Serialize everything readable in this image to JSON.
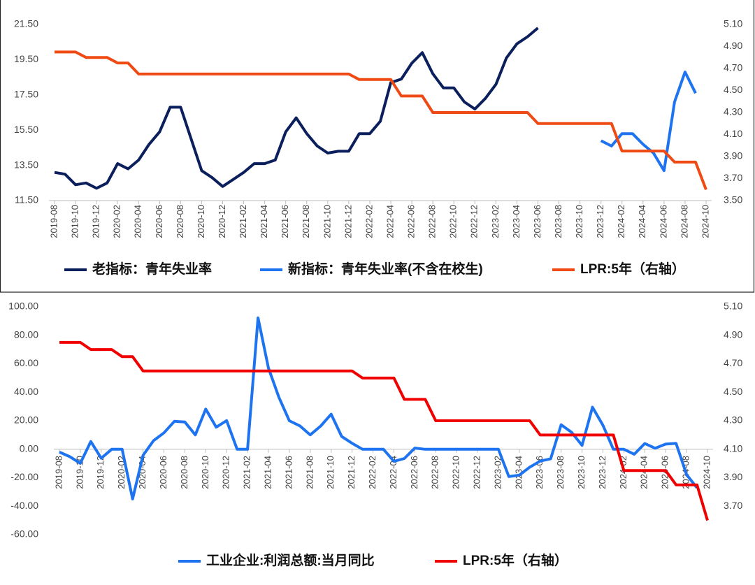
{
  "chart_data": [
    {
      "type": "line",
      "categories": [
        "2019-08",
        null,
        "2019-10",
        null,
        "2019-12",
        null,
        "2020-02",
        null,
        "2020-04",
        null,
        "2020-06",
        null,
        "2020-08",
        null,
        "2020-10",
        null,
        "2020-12",
        null,
        "2021-02",
        null,
        "2021-04",
        null,
        "2021-06",
        null,
        "2021-08",
        null,
        "2021-10",
        null,
        "2021-12",
        null,
        "2022-02",
        null,
        "2022-04",
        null,
        "2022-06",
        null,
        "2022-08",
        null,
        "2022-10",
        null,
        "2022-12",
        null,
        "2023-02",
        null,
        "2023-04",
        null,
        "2023-06",
        null,
        "2023-08",
        null,
        "2023-10",
        null,
        "2023-12",
        null,
        "2024-02",
        null,
        "2024-04",
        null,
        "2024-06",
        null,
        "2024-08",
        null,
        "2024-10"
      ],
      "series": [
        {
          "name": "老指标：青年失业率",
          "color": "#0b1f5c",
          "values": [
            13.1,
            13.0,
            12.4,
            12.5,
            12.2,
            12.5,
            13.6,
            13.3,
            13.8,
            14.7,
            15.4,
            16.8,
            16.8,
            15.0,
            13.2,
            12.8,
            12.3,
            12.7,
            13.1,
            13.6,
            13.6,
            13.8,
            15.4,
            16.2,
            15.3,
            14.6,
            14.2,
            14.3,
            14.3,
            15.3,
            15.3,
            16.0,
            18.2,
            18.4,
            19.3,
            19.9,
            18.7,
            17.9,
            17.9,
            17.1,
            16.7,
            17.3,
            18.1,
            19.6,
            20.4,
            20.8,
            21.3,
            null,
            null,
            null,
            null,
            null,
            null,
            null,
            null,
            null,
            null,
            null,
            null,
            null,
            null,
            null,
            null
          ]
        },
        {
          "name": "新指标：青年失业率(不含在校生)",
          "color": "#1e74f0",
          "values": [
            null,
            null,
            null,
            null,
            null,
            null,
            null,
            null,
            null,
            null,
            null,
            null,
            null,
            null,
            null,
            null,
            null,
            null,
            null,
            null,
            null,
            null,
            null,
            null,
            null,
            null,
            null,
            null,
            null,
            null,
            null,
            null,
            null,
            null,
            null,
            null,
            null,
            null,
            null,
            null,
            null,
            null,
            null,
            null,
            null,
            null,
            null,
            null,
            null,
            null,
            null,
            null,
            14.9,
            14.6,
            15.3,
            15.3,
            14.7,
            14.2,
            13.2,
            17.1,
            18.8,
            17.6,
            null
          ]
        },
        {
          "name": "LPR:5年（右轴）",
          "color": "#f04a14",
          "axis": "y2",
          "values": [
            4.85,
            4.85,
            4.85,
            4.8,
            4.8,
            4.8,
            4.75,
            4.75,
            4.65,
            4.65,
            4.65,
            4.65,
            4.65,
            4.65,
            4.65,
            4.65,
            4.65,
            4.65,
            4.65,
            4.65,
            4.65,
            4.65,
            4.65,
            4.65,
            4.65,
            4.65,
            4.65,
            4.65,
            4.65,
            4.6,
            4.6,
            4.6,
            4.6,
            4.45,
            4.45,
            4.45,
            4.3,
            4.3,
            4.3,
            4.3,
            4.3,
            4.3,
            4.3,
            4.3,
            4.3,
            4.3,
            4.2,
            4.2,
            4.2,
            4.2,
            4.2,
            4.2,
            4.2,
            4.2,
            3.95,
            3.95,
            3.95,
            3.95,
            3.95,
            3.85,
            3.85,
            3.85,
            3.6
          ]
        }
      ],
      "ylim": [
        11.5,
        21.5
      ],
      "yticks": [
        {
          "value": 11.5,
          "label": "11.50"
        },
        {
          "value": 13.5,
          "label": "13.50"
        },
        {
          "value": 15.5,
          "label": "15.50"
        },
        {
          "value": 17.5,
          "label": "17.50"
        },
        {
          "value": 19.5,
          "label": "19.50"
        },
        {
          "value": 21.5,
          "label": "21.50"
        }
      ],
      "y2lim": [
        3.5,
        5.1
      ],
      "y2ticks": [
        {
          "value": 3.5,
          "label": "3.50"
        },
        {
          "value": 3.7,
          "label": "3.70"
        },
        {
          "value": 3.9,
          "label": "3.90"
        },
        {
          "value": 4.1,
          "label": "4.10"
        },
        {
          "value": 4.3,
          "label": "4.30"
        },
        {
          "value": 4.5,
          "label": "4.50"
        },
        {
          "value": 4.7,
          "label": "4.70"
        },
        {
          "value": 4.9,
          "label": "4.90"
        },
        {
          "value": 5.1,
          "label": "5.10"
        }
      ],
      "grid": false,
      "legend": "bottom"
    },
    {
      "type": "line",
      "categories": [
        "2019-08",
        null,
        "2019-10",
        null,
        "2019-12",
        null,
        "2020-02",
        null,
        "2020-04",
        null,
        "2020-06",
        null,
        "2020-08",
        null,
        "2020-10",
        null,
        "2020-12",
        null,
        "2021-02",
        null,
        "2021-04",
        null,
        "2021-06",
        null,
        "2021-08",
        null,
        "2021-10",
        null,
        "2021-12",
        null,
        "2022-02",
        null,
        "2022-04",
        null,
        "2022-06",
        null,
        "2022-08",
        null,
        "2022-10",
        null,
        "2022-12",
        null,
        "2023-02",
        null,
        "2023-04",
        null,
        "2023-06",
        null,
        "2023-08",
        null,
        "2023-10",
        null,
        "2023-12",
        null,
        "2024-02",
        null,
        "2024-04",
        null,
        "2024-06",
        null,
        "2024-08",
        null,
        "2024-10"
      ],
      "series": [
        {
          "name": "工业企业:利润总额:当月同比",
          "color": "#1e74f0",
          "values": [
            -2.0,
            -5.3,
            -9.9,
            5.4,
            -6.3,
            0,
            0,
            -34.9,
            -4.3,
            6.0,
            11.5,
            19.6,
            19.1,
            10.1,
            28.2,
            15.5,
            20.1,
            0,
            0,
            92.3,
            57.0,
            36.4,
            20.0,
            16.4,
            10.1,
            16.3,
            24.6,
            9.0,
            4.2,
            0,
            0,
            0,
            -8.5,
            -6.5,
            0.8,
            0,
            0,
            0,
            0,
            0,
            0,
            0,
            0,
            -19.2,
            -18.2,
            -12.6,
            -8.3,
            -6.7,
            17.2,
            11.9,
            2.7,
            29.5,
            16.8,
            0,
            0,
            -3.5,
            4.0,
            0.7,
            3.6,
            4.1,
            -17.8,
            -27.1,
            null
          ]
        },
        {
          "name": "LPR:5年（右轴）",
          "color": "#f00000",
          "axis": "y2",
          "values": [
            4.85,
            4.85,
            4.85,
            4.8,
            4.8,
            4.8,
            4.75,
            4.75,
            4.65,
            4.65,
            4.65,
            4.65,
            4.65,
            4.65,
            4.65,
            4.65,
            4.65,
            4.65,
            4.65,
            4.65,
            4.65,
            4.65,
            4.65,
            4.65,
            4.65,
            4.65,
            4.65,
            4.65,
            4.65,
            4.6,
            4.6,
            4.6,
            4.6,
            4.45,
            4.45,
            4.45,
            4.3,
            4.3,
            4.3,
            4.3,
            4.3,
            4.3,
            4.3,
            4.3,
            4.3,
            4.3,
            4.2,
            4.2,
            4.2,
            4.2,
            4.2,
            4.2,
            4.2,
            4.2,
            3.95,
            3.95,
            3.95,
            3.95,
            3.95,
            3.85,
            3.85,
            3.85,
            3.6
          ]
        }
      ],
      "ylim": [
        -60,
        100
      ],
      "yticks": [
        {
          "value": -60,
          "label": "-60.00"
        },
        {
          "value": -40,
          "label": "-40.00"
        },
        {
          "value": -20,
          "label": "-20.00"
        },
        {
          "value": 0,
          "label": "0.00"
        },
        {
          "value": 20,
          "label": "20.00"
        },
        {
          "value": 40,
          "label": "40.00"
        },
        {
          "value": 60,
          "label": "60.00"
        },
        {
          "value": 80,
          "label": "80.00"
        },
        {
          "value": 100,
          "label": "100.00"
        }
      ],
      "y2lim": [
        3.5,
        5.1
      ],
      "y2ticks": [
        {
          "value": 3.7,
          "label": "3.70"
        },
        {
          "value": 3.9,
          "label": "3.90"
        },
        {
          "value": 4.1,
          "label": "4.10"
        },
        {
          "value": 4.3,
          "label": "4.30"
        },
        {
          "value": 4.5,
          "label": "4.50"
        },
        {
          "value": 4.7,
          "label": "4.70"
        },
        {
          "value": 4.9,
          "label": "4.90"
        },
        {
          "value": 5.1,
          "label": "5.10"
        }
      ],
      "grid": false,
      "legend": "bottom"
    }
  ]
}
